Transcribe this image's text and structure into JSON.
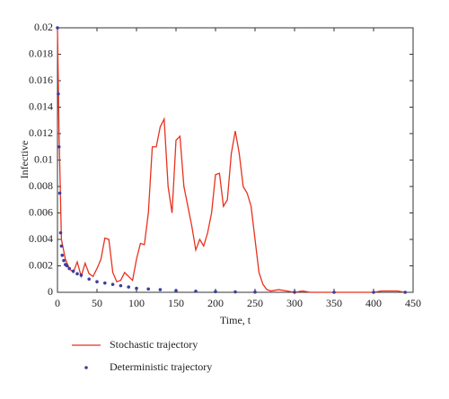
{
  "chart_data": {
    "type": "line",
    "x_label": "Time, t",
    "y_label": "Infective",
    "xlim": [
      0,
      450
    ],
    "xticks": [
      0,
      50,
      100,
      150,
      200,
      250,
      300,
      350,
      400,
      450
    ],
    "ylim": [
      0,
      0.02
    ],
    "yticks": [
      0,
      0.002,
      0.004,
      0.006,
      0.008,
      0.01,
      0.012,
      0.014,
      0.016,
      0.018,
      0.02
    ],
    "series": [
      {
        "name": "Stochastic trajectory",
        "color": "#e8321e",
        "style": "line",
        "x": [
          0,
          2,
          5,
          10,
          15,
          20,
          25,
          30,
          35,
          40,
          45,
          50,
          55,
          60,
          65,
          70,
          75,
          80,
          85,
          90,
          95,
          100,
          105,
          110,
          115,
          120,
          125,
          130,
          135,
          140,
          145,
          150,
          155,
          160,
          165,
          170,
          175,
          180,
          185,
          190,
          195,
          200,
          205,
          210,
          215,
          220,
          225,
          230,
          235,
          240,
          245,
          250,
          255,
          260,
          265,
          270,
          280,
          290,
          300,
          310,
          320,
          350,
          400,
          410,
          420,
          430,
          440
        ],
        "values": [
          0.02,
          0.012,
          0.004,
          0.0025,
          0.0018,
          0.0015,
          0.0023,
          0.0012,
          0.0022,
          0.0014,
          0.0012,
          0.0018,
          0.0025,
          0.0041,
          0.004,
          0.0015,
          0.0008,
          0.0009,
          0.0015,
          0.0012,
          0.0009,
          0.0025,
          0.0037,
          0.0036,
          0.006,
          0.011,
          0.011,
          0.0125,
          0.0131,
          0.008,
          0.006,
          0.0115,
          0.0118,
          0.008,
          0.0065,
          0.005,
          0.0032,
          0.004,
          0.0035,
          0.0045,
          0.006,
          0.0089,
          0.009,
          0.0065,
          0.007,
          0.0105,
          0.0122,
          0.0105,
          0.008,
          0.0075,
          0.0065,
          0.004,
          0.0015,
          0.0006,
          0.0002,
          0.0001,
          0.0002,
          0.0001,
          0,
          0.0001,
          0,
          0,
          0,
          0.0001,
          0.0001,
          0.0001,
          0
        ]
      },
      {
        "name": "Deterministic trajectory",
        "color": "#3a3fa0",
        "style": "dots",
        "x": [
          0,
          1,
          2,
          3,
          4,
          5,
          6,
          8,
          10,
          12,
          15,
          20,
          25,
          30,
          40,
          50,
          60,
          70,
          80,
          90,
          100,
          115,
          130,
          150,
          175,
          200,
          225,
          250,
          300,
          350,
          400,
          440
        ],
        "values": [
          0.02,
          0.015,
          0.011,
          0.0075,
          0.0045,
          0.0035,
          0.0028,
          0.0024,
          0.0021,
          0.002,
          0.0018,
          0.0016,
          0.0014,
          0.0013,
          0.001,
          0.0008,
          0.0007,
          0.0006,
          0.0005,
          0.0004,
          0.0003,
          0.00025,
          0.0002,
          0.00012,
          8e-05,
          5e-05,
          3e-05,
          2e-05,
          1e-05,
          0,
          0,
          0
        ]
      }
    ]
  }
}
